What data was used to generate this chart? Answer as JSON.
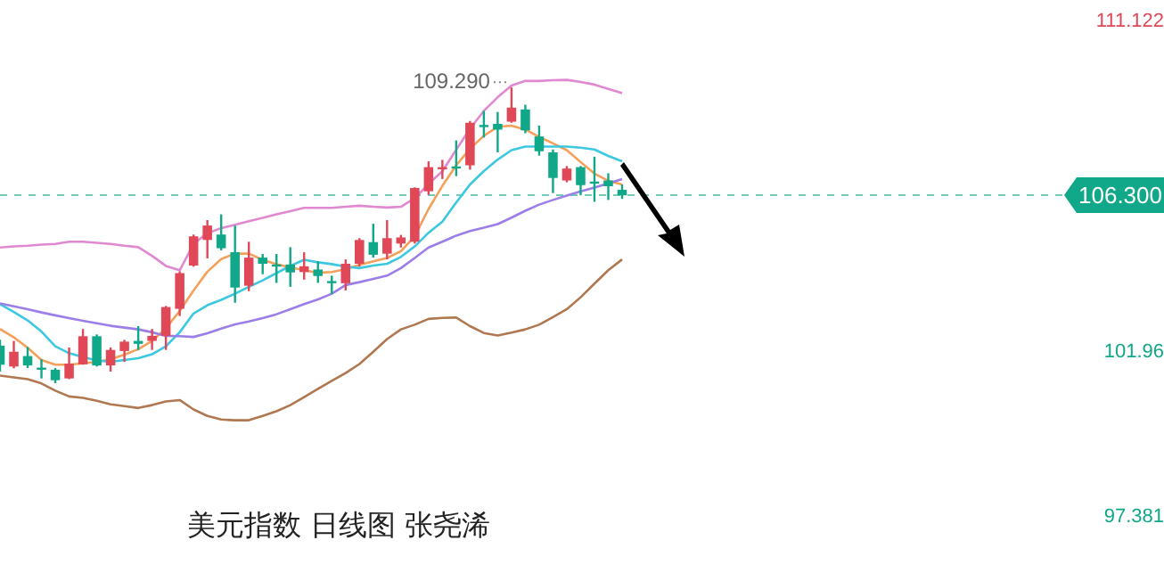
{
  "chart_data": {
    "type": "candlestick",
    "title": "美元指数 日线图 张尧浠",
    "categories": [
      null,
      null,
      null,
      null,
      null,
      null,
      null,
      null,
      null,
      null,
      null,
      null,
      null,
      null,
      null,
      null,
      null,
      null,
      null,
      null,
      null,
      null,
      null,
      null,
      null,
      null,
      null,
      null,
      null,
      null,
      null,
      null,
      null,
      null,
      null,
      null,
      null,
      null,
      null,
      null,
      null,
      null,
      null,
      null,
      null,
      null
    ],
    "ohlc": [
      [
        102.13,
        102.29,
        101.41,
        101.6
      ],
      [
        101.55,
        102.26,
        101.5,
        101.96
      ],
      [
        101.84,
        102.09,
        101.51,
        101.58
      ],
      [
        101.52,
        101.75,
        101.22,
        101.5
      ],
      [
        101.46,
        101.51,
        101.09,
        101.17
      ],
      [
        101.22,
        102.08,
        101.2,
        101.63
      ],
      [
        101.61,
        102.59,
        101.6,
        102.39
      ],
      [
        102.39,
        102.44,
        101.55,
        101.58
      ],
      [
        101.58,
        102.08,
        101.41,
        102.01
      ],
      [
        101.98,
        102.29,
        101.68,
        102.24
      ],
      [
        102.26,
        102.67,
        102.01,
        102.18
      ],
      [
        102.26,
        102.59,
        102.01,
        102.4
      ],
      [
        102.4,
        103.23,
        102.01,
        103.2
      ],
      [
        103.15,
        104.19,
        102.95,
        104.14
      ],
      [
        104.35,
        105.21,
        104.32,
        105.16
      ],
      [
        105.06,
        105.61,
        104.55,
        105.46
      ],
      [
        105.21,
        105.77,
        104.77,
        104.83
      ],
      [
        104.72,
        105.46,
        103.32,
        103.74
      ],
      [
        103.79,
        105.01,
        103.64,
        104.57
      ],
      [
        104.57,
        104.67,
        104.11,
        104.4
      ],
      [
        104.38,
        104.67,
        103.87,
        104.33
      ],
      [
        104.38,
        104.86,
        103.76,
        104.16
      ],
      [
        104.17,
        104.72,
        103.96,
        104.33
      ],
      [
        104.24,
        104.47,
        103.87,
        104.06
      ],
      [
        103.92,
        104.07,
        103.56,
        103.89
      ],
      [
        103.86,
        104.52,
        103.66,
        104.4
      ],
      [
        104.4,
        105.11,
        104.32,
        105.06
      ],
      [
        105,
        105.51,
        104.57,
        104.65
      ],
      [
        104.68,
        105.61,
        104.52,
        105.11
      ],
      [
        104.96,
        105.2,
        104.85,
        105.13
      ],
      [
        105.01,
        106.52,
        104.96,
        106.5
      ],
      [
        106.41,
        107.24,
        106.31,
        107.08
      ],
      [
        107.06,
        107.28,
        106.75,
        107.08
      ],
      [
        107.1,
        107.82,
        106.83,
        107.06
      ],
      [
        107.13,
        108.36,
        107.01,
        108.31
      ],
      [
        108.25,
        108.64,
        107.9,
        108.23
      ],
      [
        108.28,
        108.61,
        107.49,
        108.12
      ],
      [
        108.34,
        109.29,
        108.31,
        108.73
      ],
      [
        108.68,
        108.81,
        108.02,
        108.1
      ],
      [
        107.93,
        108.23,
        107.4,
        107.52
      ],
      [
        107.49,
        107.57,
        106.36,
        106.78
      ],
      [
        106.71,
        107.11,
        106.66,
        107.04
      ],
      [
        107.08,
        107.11,
        106.3,
        106.58
      ],
      [
        106.68,
        107.37,
        106.12,
        106.66
      ],
      [
        106.71,
        106.91,
        106.17,
        106.55
      ],
      [
        106.45,
        106.6,
        106.2,
        106.3
      ]
    ],
    "colors": [
      "#10a888",
      "#e04858",
      "#10a888",
      "#10a888",
      "#10a888",
      "#e04858",
      "#e04858",
      "#10a888",
      "#e04858",
      "#e04858",
      "#10a888",
      "#e04858",
      "#e04858",
      "#e04858",
      "#e04858",
      "#e04858",
      "#10a888",
      "#10a888",
      "#e04858",
      "#10a888",
      "#10a888",
      "#10a888",
      "#e04858",
      "#10a888",
      "#10a888",
      "#e04858",
      "#e04858",
      "#10a888",
      "#e04858",
      "#e04858",
      "#e04858",
      "#e04858",
      "#e04858",
      "#10a888",
      "#e04858",
      "#10a888",
      "#10a888",
      "#e04858",
      "#10a888",
      "#10a888",
      "#10a888",
      "#e04858",
      "#10a888",
      "#10a888",
      "#10a888",
      "#10a888"
    ],
    "series": [
      {
        "type": "line",
        "color": "#e088d0",
        "values": [
          104.85,
          104.88,
          104.9,
          104.93,
          104.95,
          105.01,
          105.01,
          104.98,
          104.95,
          104.9,
          104.86,
          104.62,
          104.34,
          104.22,
          104.95,
          105.25,
          105.39,
          105.48,
          105.58,
          105.67,
          105.77,
          105.86,
          105.95,
          105.95,
          105.95,
          105.98,
          106.01,
          105.98,
          105.96,
          105.98,
          106.22,
          106.61,
          106.97,
          107.56,
          108.15,
          108.64,
          109.02,
          109.34,
          109.47,
          109.47,
          109.49,
          109.5,
          109.44,
          109.37,
          109.25,
          109.13
        ]
      },
      {
        "type": "line",
        "color": "#b07850",
        "values": [
          101.3,
          101.25,
          101.2,
          101.08,
          100.88,
          100.72,
          100.68,
          100.6,
          100.5,
          100.45,
          100.4,
          100.48,
          100.58,
          100.62,
          100.36,
          100.18,
          100.08,
          100.06,
          100.06,
          100.18,
          100.31,
          100.48,
          100.7,
          100.93,
          101.15,
          101.37,
          101.62,
          101.96,
          102.31,
          102.58,
          102.71,
          102.87,
          102.9,
          102.91,
          102.67,
          102.48,
          102.41,
          102.49,
          102.58,
          102.71,
          102.92,
          103.14,
          103.47,
          103.85,
          104.22,
          104.52
        ]
      },
      {
        "type": "line",
        "color": "#9b7ee8",
        "values": [
          103.3,
          103.22,
          103.14,
          103.05,
          102.97,
          102.89,
          102.82,
          102.75,
          102.68,
          102.63,
          102.58,
          102.5,
          102.4,
          102.39,
          102.37,
          102.47,
          102.6,
          102.72,
          102.8,
          102.89,
          103,
          103.14,
          103.28,
          103.41,
          103.57,
          103.81,
          103.89,
          103.98,
          104.07,
          104.28,
          104.56,
          104.85,
          105.01,
          105.18,
          105.31,
          105.4,
          105.5,
          105.68,
          105.87,
          106.04,
          106.17,
          106.29,
          106.41,
          106.51,
          106.63,
          106.75
        ]
      },
      {
        "type": "line",
        "color": "#3cc8e0",
        "values": [
          103.28,
          103.06,
          102.83,
          102.52,
          102.11,
          101.92,
          101.81,
          101.72,
          101.68,
          101.73,
          101.78,
          101.89,
          102.11,
          102.5,
          103.02,
          103.25,
          103.4,
          103.57,
          103.76,
          103.94,
          104.14,
          104.34,
          104.51,
          104.44,
          104.39,
          104.32,
          104.28,
          104.35,
          104.4,
          104.59,
          104.88,
          105.26,
          105.57,
          106.1,
          106.6,
          106.97,
          107.29,
          107.55,
          107.65,
          107.65,
          107.65,
          107.65,
          107.62,
          107.57,
          107.39,
          107.24
        ]
      },
      {
        "type": "line",
        "color": "#f5a05a",
        "values": [
          102.59,
          102.36,
          102.07,
          101.73,
          101.6,
          101.6,
          101.64,
          101.68,
          101.75,
          101.88,
          102.03,
          102.26,
          102.61,
          103.09,
          103.66,
          104.18,
          104.53,
          104.68,
          104.68,
          104.51,
          104.39,
          104.3,
          104.22,
          104.15,
          104.17,
          104.25,
          104.37,
          104.47,
          104.56,
          104.75,
          105.16,
          105.92,
          106.56,
          107.13,
          107.59,
          107.95,
          108.2,
          108.23,
          108.12,
          107.92,
          107.74,
          107.55,
          107.22,
          106.9,
          106.7,
          106.6
        ]
      }
    ],
    "ylim": [
      97.381,
      111.122
    ],
    "yticks": [
      111.122,
      101.96,
      97.381
    ],
    "tick_labels": "y",
    "grid": false,
    "ref_lines": [
      {
        "axis": "y",
        "value": 106.3,
        "label": "106.300",
        "color": "#10a888",
        "line_style": "dashed"
      }
    ],
    "annotations": [
      "109.290"
    ]
  }
}
